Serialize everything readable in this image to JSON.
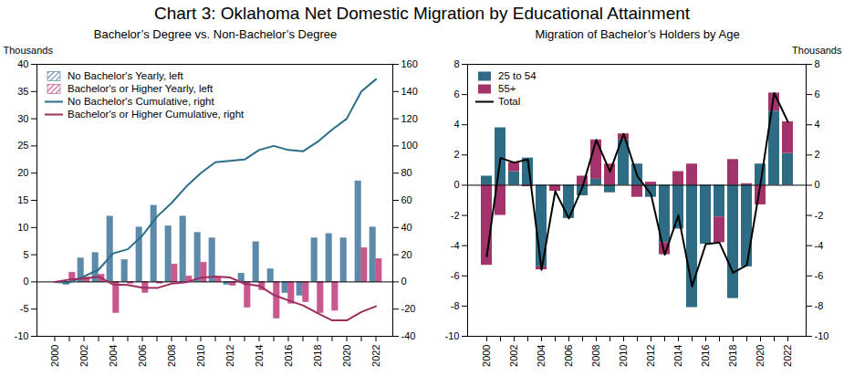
{
  "chart_data": [
    {
      "type": "bar",
      "title": "Chart 3: Oklahoma Net Domestic Migration by Educational Attainment",
      "subtitle": "Bachelor’s Degree vs. Non-Bachelor’s Degree",
      "ylabel": "Thousands",
      "categories": [
        "2000",
        null,
        "2002",
        null,
        "2004",
        null,
        "2006",
        null,
        "2008",
        null,
        "2010",
        null,
        "2012",
        null,
        "2014",
        null,
        "2016",
        null,
        "2018",
        null,
        "2020",
        null,
        "2022"
      ],
      "ylim": [
        -10,
        40
      ],
      "yticks": [
        -10,
        -5,
        0,
        5,
        10,
        15,
        20,
        25,
        30,
        35,
        40
      ],
      "y2lim": [
        -40,
        160
      ],
      "y2ticks": [
        -40,
        -20,
        0,
        20,
        40,
        60,
        80,
        100,
        120,
        140,
        160
      ],
      "grid": false,
      "stacked": false,
      "legend": "upper left",
      "series": [
        {
          "name": "No Bachelor's Yearly, left",
          "type": "bar",
          "color": "#5d8aa8",
          "values": [
            0,
            -0.5,
            4.3,
            5.3,
            12,
            4,
            10,
            14,
            10.2,
            12,
            9,
            8,
            -0.5,
            1.5,
            7.3,
            2.3,
            -2,
            -2.5,
            8,
            8.8,
            8,
            18.5,
            10
          ]
        },
        {
          "name": "Bachelor's or Higher Yearly, left",
          "type": "bar",
          "color": "#c9588f",
          "values": [
            0,
            1.7,
            0.8,
            1.3,
            -5.7,
            -0.3,
            -2,
            -0.3,
            3.2,
            1,
            3.5,
            0.8,
            -0.7,
            -4.7,
            -1.5,
            -6.7,
            -4,
            -3.7,
            -5.7,
            -5.3,
            0,
            6.2,
            4.2
          ]
        },
        {
          "name": "No Bachelor's Cumulative, right",
          "type": "line",
          "axis": "y2",
          "color": "#2b6d88",
          "values": [
            0,
            -0.5,
            4,
            9,
            21,
            24,
            34,
            48,
            58,
            70,
            80,
            88,
            89,
            90,
            97,
            100,
            97,
            96,
            103,
            112,
            120,
            140,
            149
          ]
        },
        {
          "name": "Bachelor's or Higher Cumulative, right",
          "type": "line",
          "axis": "y2",
          "color": "#9b2d5f",
          "values": [
            0,
            1.7,
            2.5,
            3.8,
            -1.9,
            -2.2,
            -4.2,
            -4.5,
            -1.3,
            -0.3,
            3.2,
            4,
            3.3,
            -1.4,
            -2.9,
            -9.6,
            -13.6,
            -17.3,
            -23,
            -28.3,
            -28.3,
            -22.1,
            -17.9
          ]
        }
      ]
    },
    {
      "type": "bar",
      "subtitle": "Migration of Bachelor’s Holders by Age",
      "y2label": "Thousands",
      "categories": [
        "2000",
        null,
        "2002",
        null,
        "2004",
        null,
        "2006",
        null,
        "2008",
        null,
        "2010",
        null,
        "2012",
        null,
        "2014",
        null,
        "2016",
        null,
        "2018",
        null,
        "2020",
        null,
        "2022"
      ],
      "ylim": [
        -10,
        8
      ],
      "yticks": [
        -10,
        -8,
        -6,
        -4,
        -2,
        0,
        2,
        4,
        6,
        8
      ],
      "y2lim": [
        -10,
        8
      ],
      "y2ticks": [
        -10,
        -8,
        -6,
        -4,
        -2,
        0,
        2,
        4,
        6,
        8
      ],
      "grid": false,
      "stacked": true,
      "legend": "upper left",
      "series": [
        {
          "name": "25 to 54",
          "type": "bar",
          "color": "#2e6b85",
          "values": [
            0.6,
            3.8,
            0.9,
            1.8,
            -5.4,
            0,
            -2.2,
            -0.7,
            0.4,
            -0.5,
            3.0,
            1.4,
            -0.8,
            -3.8,
            -2.9,
            -8.1,
            -3.9,
            -2.1,
            -7.5,
            -5.4,
            1.4,
            4.9,
            2.1
          ]
        },
        {
          "name": "55+",
          "type": "bar",
          "color": "#a3346b",
          "values": [
            -5.3,
            -2.0,
            0.6,
            -0.1,
            -0.2,
            -0.4,
            0,
            0.6,
            2.6,
            1.4,
            0.4,
            -0.8,
            0.2,
            -0.8,
            0.9,
            1.4,
            0,
            -1.7,
            1.7,
            0.1,
            -1.3,
            1.2,
            2.1
          ]
        },
        {
          "name": "Total",
          "type": "line",
          "color": "#000000",
          "values": [
            -4.7,
            1.8,
            1.5,
            1.7,
            -5.6,
            -0.4,
            -2.2,
            -0.1,
            3.0,
            0.9,
            3.4,
            0.6,
            -0.6,
            -4.6,
            -2.0,
            -6.7,
            -3.9,
            -3.8,
            -5.8,
            -5.3,
            0.1,
            6.1,
            4.2
          ]
        }
      ]
    }
  ]
}
